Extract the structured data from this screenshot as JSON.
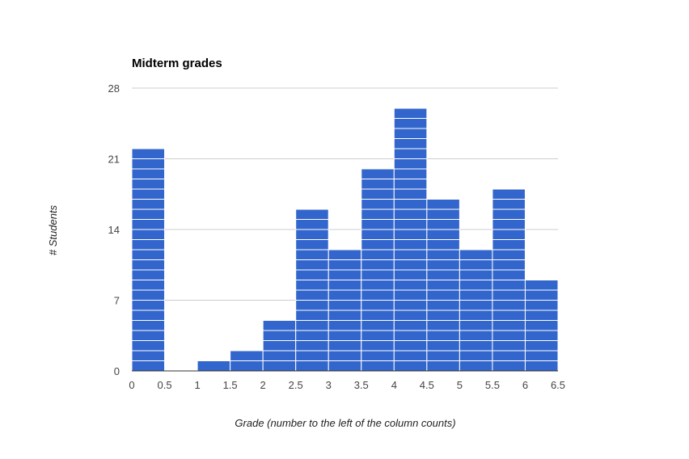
{
  "chart_data": {
    "type": "bar",
    "title": "Midterm grades",
    "xlabel": "Grade (number to the left of the column counts)",
    "ylabel": "# Students",
    "bins": [
      {
        "start": 0,
        "end": 0.5,
        "value": 22
      },
      {
        "start": 0.5,
        "end": 1,
        "value": 0
      },
      {
        "start": 1,
        "end": 1.5,
        "value": 1
      },
      {
        "start": 1.5,
        "end": 2,
        "value": 2
      },
      {
        "start": 2,
        "end": 2.5,
        "value": 5
      },
      {
        "start": 2.5,
        "end": 3,
        "value": 16
      },
      {
        "start": 3,
        "end": 3.5,
        "value": 12
      },
      {
        "start": 3.5,
        "end": 4,
        "value": 20
      },
      {
        "start": 4,
        "end": 4.5,
        "value": 26
      },
      {
        "start": 4.5,
        "end": 5,
        "value": 17
      },
      {
        "start": 5,
        "end": 5.5,
        "value": 12
      },
      {
        "start": 5.5,
        "end": 6,
        "value": 18
      },
      {
        "start": 6,
        "end": 6.5,
        "value": 9
      }
    ],
    "xlim": [
      0,
      6.5
    ],
    "ylim": [
      0,
      28
    ],
    "x_ticks": [
      "0",
      "0.5",
      "1",
      "1.5",
      "2",
      "2.5",
      "3",
      "3.5",
      "4",
      "4.5",
      "5",
      "5.5",
      "6",
      "6.5"
    ],
    "y_ticks": [
      "0",
      "7",
      "14",
      "21",
      "28"
    ],
    "bar_color": "#3366cc",
    "grid": true,
    "legend": "none"
  }
}
